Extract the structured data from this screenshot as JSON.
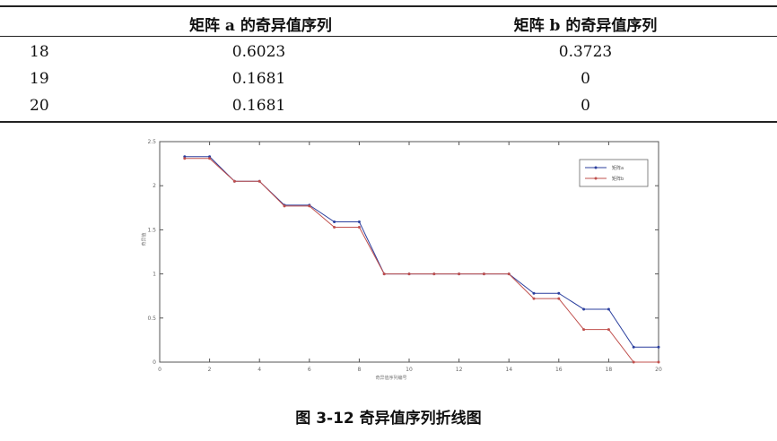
{
  "table": {
    "headers": [
      "",
      "矩阵 a 的奇异值序列",
      "矩阵 b 的奇异值序列"
    ],
    "rows": [
      [
        "18",
        "0.6023",
        "0.3723"
      ],
      [
        "19",
        "0.1681",
        "0"
      ],
      [
        "20",
        "0.1681",
        "0"
      ]
    ]
  },
  "chart_data": {
    "type": "line",
    "title": "",
    "xlabel": "奇异值序列编号",
    "ylabel": "奇异值",
    "xlim": [
      0,
      20
    ],
    "ylim": [
      0,
      2.5
    ],
    "xticks": [
      0,
      2,
      4,
      6,
      8,
      10,
      12,
      14,
      16,
      18,
      20
    ],
    "yticks": [
      0,
      0.5,
      1,
      1.5,
      2,
      2.5
    ],
    "grid": false,
    "legend": "top-right",
    "x": [
      1,
      2,
      3,
      4,
      5,
      6,
      7,
      8,
      9,
      10,
      11,
      12,
      13,
      14,
      15,
      16,
      17,
      18,
      19,
      20
    ],
    "series": [
      {
        "name": "矩阵a",
        "color": "#2b3f9e",
        "values": [
          2.33,
          2.33,
          2.05,
          2.05,
          1.78,
          1.78,
          1.59,
          1.59,
          1.0,
          1.0,
          1.0,
          1.0,
          1.0,
          1.0,
          0.78,
          0.78,
          0.6,
          0.6,
          0.17,
          0.17
        ]
      },
      {
        "name": "矩阵b",
        "color": "#c0504d",
        "values": [
          2.31,
          2.31,
          2.05,
          2.05,
          1.77,
          1.77,
          1.53,
          1.53,
          1.0,
          1.0,
          1.0,
          1.0,
          1.0,
          1.0,
          0.72,
          0.72,
          0.37,
          0.37,
          0.0,
          0.0
        ]
      }
    ]
  },
  "caption": "图 3-12  奇异值序列折线图"
}
